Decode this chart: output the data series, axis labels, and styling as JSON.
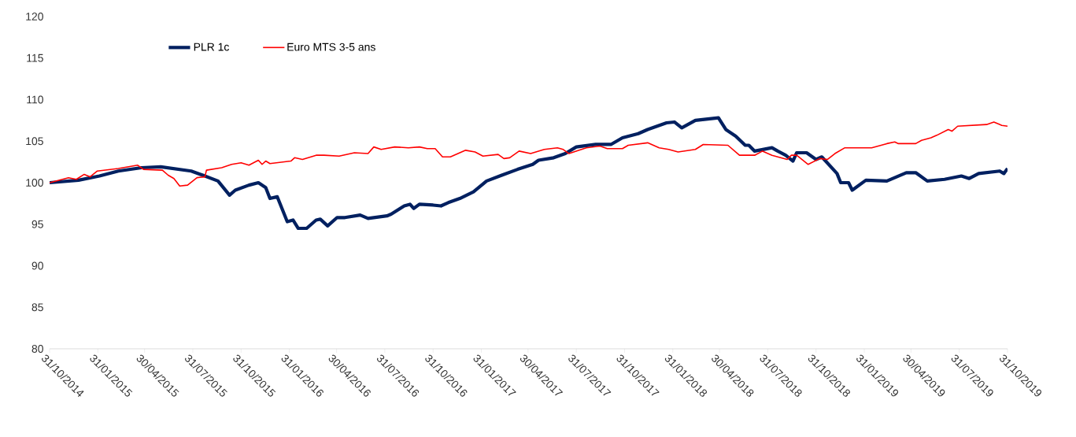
{
  "chart_data": {
    "type": "line",
    "xlim": [
      "2014-10-31",
      "2019-10-31"
    ],
    "xticks": [
      {
        "value": "2014-10-31",
        "label": "31/10/2014"
      },
      {
        "value": "2015-01-31",
        "label": "31/01/2015"
      },
      {
        "value": "2015-04-30",
        "label": "30/04/2015"
      },
      {
        "value": "2015-07-31",
        "label": "31/07/2015"
      },
      {
        "value": "2015-10-31",
        "label": "31/10/2015"
      },
      {
        "value": "2016-01-31",
        "label": "31/01/2016"
      },
      {
        "value": "2016-04-30",
        "label": "30/04/2016"
      },
      {
        "value": "2016-07-31",
        "label": "31/07/2016"
      },
      {
        "value": "2016-10-31",
        "label": "31/10/2016"
      },
      {
        "value": "2017-01-31",
        "label": "31/01/2017"
      },
      {
        "value": "2017-04-30",
        "label": "30/04/2017"
      },
      {
        "value": "2017-07-31",
        "label": "31/07/2017"
      },
      {
        "value": "2017-10-31",
        "label": "31/10/2017"
      },
      {
        "value": "2018-01-31",
        "label": "31/01/2018"
      },
      {
        "value": "2018-04-30",
        "label": "30/04/2018"
      },
      {
        "value": "2018-07-31",
        "label": "31/07/2018"
      },
      {
        "value": "2018-10-31",
        "label": "31/10/2018"
      },
      {
        "value": "2019-01-31",
        "label": "31/01/2019"
      },
      {
        "value": "2019-04-30",
        "label": "30/04/2019"
      },
      {
        "value": "2019-07-31",
        "label": "31/07/2019"
      },
      {
        "value": "2019-10-31",
        "label": "31/10/2019"
      }
    ],
    "ylim": [
      80,
      120
    ],
    "yticks": [
      80,
      85,
      90,
      95,
      100,
      105,
      110,
      115,
      120
    ],
    "grid": false,
    "legend": "top left",
    "marker": "none",
    "line_style": "solid",
    "series": [
      {
        "name": "PLR 1c",
        "color": "#002060",
        "x": [
          "2014-10-31",
          "2014-12-25",
          "2015-02-03",
          "2015-03-11",
          "2015-04-24",
          "2015-05-31",
          "2015-07-28",
          "2015-08-19",
          "2015-09-17",
          "2015-10-09",
          "2015-10-20",
          "2015-11-15",
          "2015-12-03",
          "2015-12-17",
          "2015-12-25",
          "2016-01-08",
          "2016-01-27",
          "2016-02-07",
          "2016-02-17",
          "2016-03-04",
          "2016-03-22",
          "2016-03-30",
          "2016-04-13",
          "2016-05-01",
          "2016-05-16",
          "2016-06-14",
          "2016-06-29",
          "2016-08-04",
          "2016-08-12",
          "2016-09-06",
          "2016-09-17",
          "2016-09-24",
          "2016-10-05",
          "2016-10-31",
          "2016-11-15",
          "2016-11-29",
          "2016-12-21",
          "2017-01-16",
          "2017-02-10",
          "2017-03-11",
          "2017-04-10",
          "2017-05-09",
          "2017-05-20",
          "2017-06-18",
          "2017-07-10",
          "2017-07-31",
          "2017-09-06",
          "2017-10-05",
          "2017-10-27",
          "2017-11-26",
          "2017-12-14",
          "2018-01-19",
          "2018-02-03",
          "2018-02-17",
          "2018-03-15",
          "2018-04-28",
          "2018-05-01",
          "2018-05-12",
          "2018-05-31",
          "2018-06-18",
          "2018-06-25",
          "2018-07-06",
          "2018-08-08",
          "2018-08-19",
          "2018-09-03",
          "2018-09-17",
          "2018-09-24",
          "2018-10-13",
          "2018-10-31",
          "2018-11-11",
          "2018-12-10",
          "2018-12-17",
          "2019-01-01",
          "2019-01-08",
          "2019-02-03",
          "2019-03-15",
          "2019-04-21",
          "2019-05-09",
          "2019-05-31",
          "2019-07-03",
          "2019-08-04",
          "2019-08-19",
          "2019-09-06",
          "2019-10-16",
          "2019-10-24",
          "2019-10-31"
        ],
        "values": [
          100.0,
          100.3,
          100.8,
          101.4,
          101.8,
          101.9,
          101.4,
          100.9,
          100.2,
          98.5,
          99.1,
          99.7,
          100.0,
          99.4,
          98.1,
          98.3,
          95.3,
          95.5,
          94.5,
          94.5,
          95.5,
          95.6,
          94.8,
          95.8,
          95.8,
          96.1,
          95.7,
          96.0,
          96.2,
          97.2,
          97.4,
          96.9,
          97.4,
          97.3,
          97.2,
          97.6,
          98.1,
          98.9,
          100.2,
          100.9,
          101.6,
          102.2,
          102.7,
          103.0,
          103.5,
          104.3,
          104.6,
          104.6,
          105.4,
          105.9,
          106.4,
          107.2,
          107.3,
          106.6,
          107.5,
          107.8,
          107.5,
          106.4,
          105.6,
          104.5,
          104.5,
          103.8,
          104.2,
          103.8,
          103.3,
          102.6,
          103.6,
          103.6,
          102.8,
          103.1,
          101.1,
          100.0,
          100.0,
          99.1,
          100.3,
          100.2,
          101.2,
          101.2,
          100.2,
          100.4,
          100.8,
          100.5,
          101.1,
          101.4,
          101.1,
          101.7
        ]
      },
      {
        "name": "Euro MTS 3-5 ans",
        "color": "#ff0000",
        "x": [
          "2014-10-31",
          "2014-12-06",
          "2014-12-21",
          "2015-01-05",
          "2015-01-16",
          "2015-01-30",
          "2015-03-11",
          "2015-04-17",
          "2015-04-28",
          "2015-06-03",
          "2015-06-14",
          "2015-06-25",
          "2015-07-06",
          "2015-07-21",
          "2015-08-08",
          "2015-08-23",
          "2015-08-26",
          "2015-09-24",
          "2015-10-13",
          "2015-10-31",
          "2015-11-15",
          "2015-12-03",
          "2015-12-10",
          "2015-12-17",
          "2015-12-25",
          "2016-02-03",
          "2016-02-10",
          "2016-02-25",
          "2016-03-22",
          "2016-04-06",
          "2016-05-05",
          "2016-06-03",
          "2016-06-29",
          "2016-07-10",
          "2016-07-24",
          "2016-08-19",
          "2016-09-14",
          "2016-10-05",
          "2016-10-20",
          "2016-11-04",
          "2016-11-18",
          "2016-12-03",
          "2017-01-01",
          "2017-01-19",
          "2017-02-03",
          "2017-03-04",
          "2017-03-15",
          "2017-03-26",
          "2017-04-13",
          "2017-05-05",
          "2017-05-31",
          "2017-06-25",
          "2017-07-06",
          "2017-07-17",
          "2017-08-19",
          "2017-09-14",
          "2017-09-28",
          "2017-10-27",
          "2017-11-07",
          "2017-12-14",
          "2018-01-05",
          "2018-01-23",
          "2018-02-10",
          "2018-03-15",
          "2018-03-30",
          "2018-05-16",
          "2018-06-07",
          "2018-07-06",
          "2018-07-21",
          "2018-08-08",
          "2018-09-06",
          "2018-09-14",
          "2018-09-24",
          "2018-10-16",
          "2018-11-07",
          "2018-11-22",
          "2018-12-06",
          "2018-12-25",
          "2019-02-14",
          "2019-03-04",
          "2019-03-15",
          "2019-03-30",
          "2019-04-06",
          "2019-05-09",
          "2019-05-20",
          "2019-06-07",
          "2019-06-18",
          "2019-07-10",
          "2019-07-17",
          "2019-07-28",
          "2019-09-21",
          "2019-10-05",
          "2019-10-20",
          "2019-10-31"
        ],
        "values": [
          100.0,
          100.6,
          100.4,
          101.0,
          100.7,
          101.4,
          101.7,
          102.1,
          101.6,
          101.5,
          100.9,
          100.5,
          99.6,
          99.7,
          100.6,
          100.7,
          101.5,
          101.8,
          102.2,
          102.4,
          102.1,
          102.7,
          102.2,
          102.6,
          102.3,
          102.6,
          103.0,
          102.8,
          103.3,
          103.3,
          103.2,
          103.6,
          103.5,
          104.3,
          104.0,
          104.3,
          104.2,
          104.3,
          104.1,
          104.1,
          103.1,
          103.1,
          103.9,
          103.7,
          103.2,
          103.4,
          102.9,
          103.0,
          103.8,
          103.5,
          104.0,
          104.2,
          104.0,
          103.5,
          104.2,
          104.4,
          104.1,
          104.1,
          104.5,
          104.8,
          104.2,
          104.0,
          103.7,
          104.0,
          104.6,
          104.5,
          103.3,
          103.3,
          103.8,
          103.3,
          102.8,
          103.3,
          103.3,
          102.2,
          102.9,
          102.8,
          103.5,
          104.2,
          104.2,
          104.5,
          104.7,
          104.9,
          104.7,
          104.7,
          105.1,
          105.4,
          105.7,
          106.4,
          106.2,
          106.8,
          107.0,
          107.3,
          106.9,
          106.8
        ]
      }
    ]
  }
}
